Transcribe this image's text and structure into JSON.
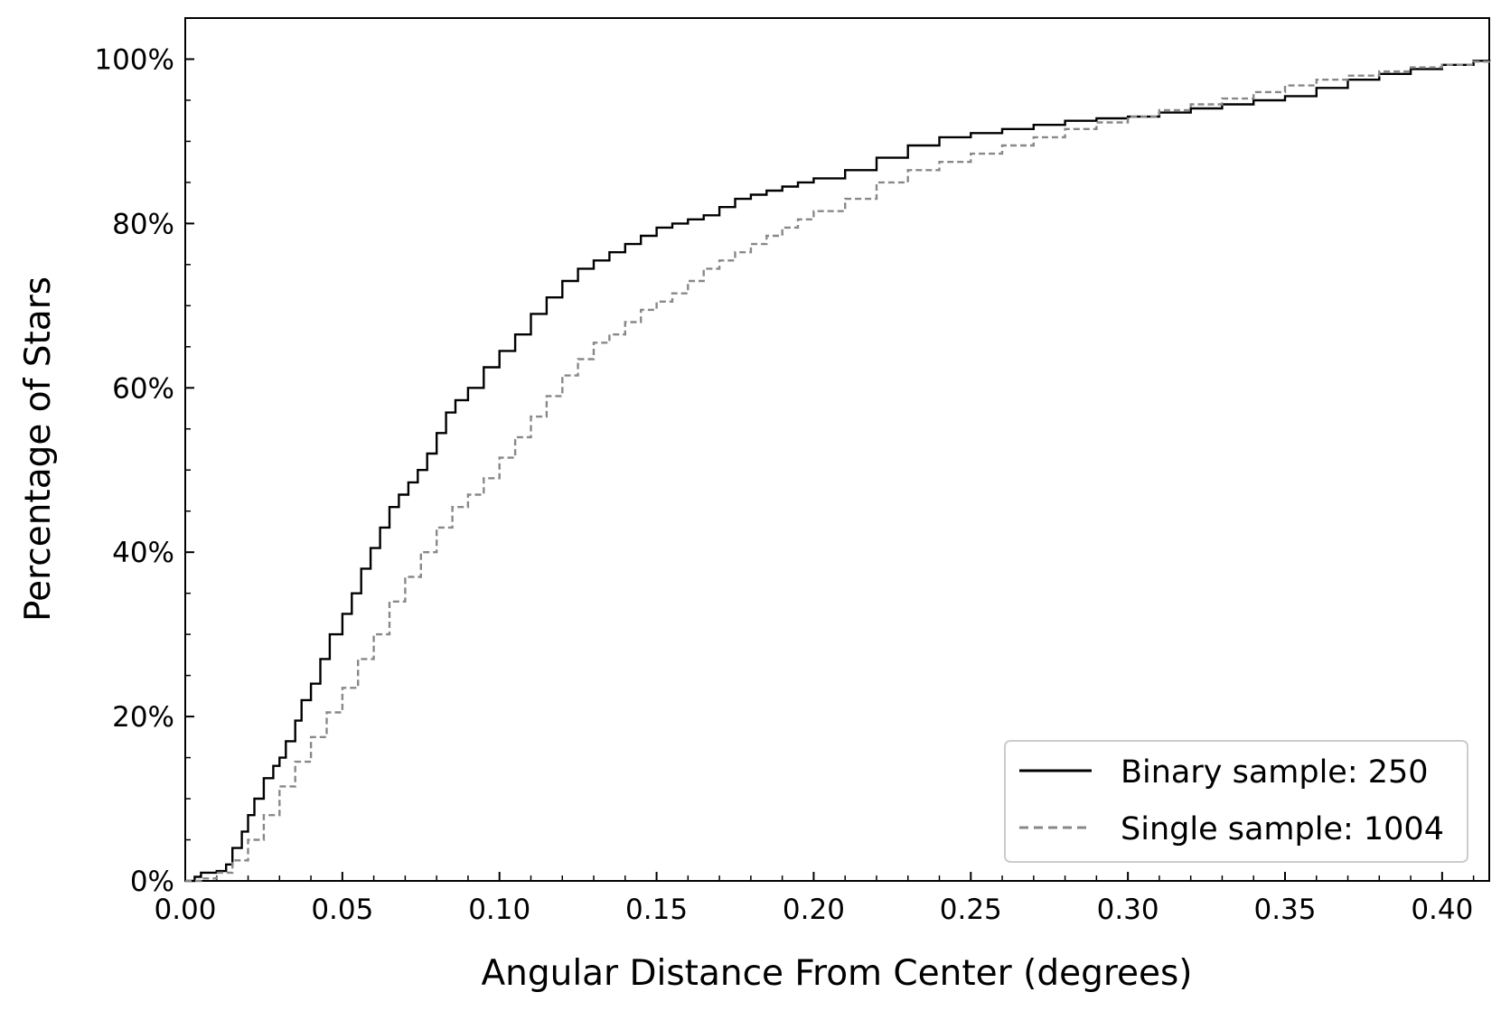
{
  "chart_data": {
    "type": "line",
    "title": "",
    "xlabel": "Angular Distance From Center (degrees)",
    "ylabel": "Percentage of Stars",
    "xlim": [
      0,
      0.415
    ],
    "ylim": [
      0,
      105
    ],
    "x_ticks": [
      {
        "value": 0.0,
        "label": "0.00"
      },
      {
        "value": 0.05,
        "label": "0.05"
      },
      {
        "value": 0.1,
        "label": "0.10"
      },
      {
        "value": 0.15,
        "label": "0.15"
      },
      {
        "value": 0.2,
        "label": "0.20"
      },
      {
        "value": 0.25,
        "label": "0.25"
      },
      {
        "value": 0.3,
        "label": "0.30"
      },
      {
        "value": 0.35,
        "label": "0.35"
      },
      {
        "value": 0.4,
        "label": "0.40"
      }
    ],
    "y_ticks": [
      {
        "value": 0,
        "label": "0%"
      },
      {
        "value": 20,
        "label": "20%"
      },
      {
        "value": 40,
        "label": "40%"
      },
      {
        "value": 60,
        "label": "60%"
      },
      {
        "value": 80,
        "label": "80%"
      },
      {
        "value": 100,
        "label": "100%"
      }
    ],
    "grid": false,
    "legend_position": "bottom-right",
    "series": [
      {
        "name": "Binary sample: 250",
        "style": "solid",
        "color": "#000000",
        "x": [
          0.0,
          0.003,
          0.005,
          0.01,
          0.013,
          0.015,
          0.018,
          0.02,
          0.022,
          0.025,
          0.028,
          0.03,
          0.032,
          0.035,
          0.037,
          0.04,
          0.043,
          0.046,
          0.05,
          0.053,
          0.056,
          0.059,
          0.062,
          0.065,
          0.068,
          0.071,
          0.074,
          0.077,
          0.08,
          0.083,
          0.086,
          0.09,
          0.095,
          0.1,
          0.105,
          0.11,
          0.115,
          0.12,
          0.125,
          0.13,
          0.135,
          0.14,
          0.145,
          0.15,
          0.155,
          0.16,
          0.165,
          0.17,
          0.175,
          0.18,
          0.185,
          0.19,
          0.195,
          0.2,
          0.21,
          0.22,
          0.23,
          0.24,
          0.25,
          0.26,
          0.27,
          0.28,
          0.29,
          0.3,
          0.31,
          0.32,
          0.33,
          0.34,
          0.35,
          0.36,
          0.37,
          0.38,
          0.39,
          0.4,
          0.41,
          0.415
        ],
        "y": [
          0.0,
          0.5,
          1.0,
          1.2,
          2.0,
          4.0,
          6.0,
          8.0,
          10.0,
          12.5,
          14.0,
          15.0,
          17.0,
          19.5,
          22.0,
          24.0,
          27.0,
          30.0,
          32.5,
          35.0,
          38.0,
          40.5,
          43.0,
          45.5,
          47.0,
          48.5,
          50.0,
          52.0,
          54.5,
          57.0,
          58.5,
          60.0,
          62.5,
          64.5,
          66.5,
          69.0,
          71.0,
          73.0,
          74.5,
          75.5,
          76.5,
          77.5,
          78.5,
          79.5,
          80.0,
          80.5,
          81.0,
          82.0,
          83.0,
          83.5,
          84.0,
          84.5,
          85.0,
          85.5,
          86.5,
          88.0,
          89.5,
          90.5,
          91.0,
          91.5,
          92.0,
          92.5,
          92.8,
          93.0,
          93.5,
          94.0,
          94.5,
          95.0,
          95.5,
          96.5,
          97.5,
          98.2,
          98.8,
          99.3,
          99.8,
          100.0
        ]
      },
      {
        "name": "Single sample: 1004",
        "style": "dashed",
        "color": "#888888",
        "x": [
          0.0,
          0.005,
          0.01,
          0.015,
          0.02,
          0.025,
          0.03,
          0.035,
          0.04,
          0.045,
          0.05,
          0.055,
          0.06,
          0.065,
          0.07,
          0.075,
          0.08,
          0.085,
          0.09,
          0.095,
          0.1,
          0.105,
          0.11,
          0.115,
          0.12,
          0.125,
          0.13,
          0.135,
          0.14,
          0.145,
          0.15,
          0.155,
          0.16,
          0.165,
          0.17,
          0.175,
          0.18,
          0.185,
          0.19,
          0.195,
          0.2,
          0.21,
          0.22,
          0.23,
          0.24,
          0.25,
          0.26,
          0.27,
          0.28,
          0.29,
          0.3,
          0.31,
          0.32,
          0.33,
          0.34,
          0.35,
          0.36,
          0.37,
          0.38,
          0.39,
          0.4,
          0.41,
          0.415
        ],
        "y": [
          0.0,
          0.3,
          1.0,
          2.5,
          5.0,
          8.0,
          11.5,
          14.5,
          17.5,
          20.5,
          23.5,
          27.0,
          30.0,
          34.0,
          37.0,
          40.0,
          43.0,
          45.5,
          47.0,
          49.0,
          51.5,
          54.0,
          56.5,
          59.0,
          61.5,
          63.5,
          65.5,
          66.5,
          68.0,
          69.5,
          70.5,
          71.5,
          73.0,
          74.5,
          75.5,
          76.5,
          77.5,
          78.5,
          79.5,
          80.5,
          81.5,
          83.0,
          85.0,
          86.5,
          87.5,
          88.5,
          89.5,
          90.5,
          91.5,
          92.3,
          93.0,
          93.8,
          94.5,
          95.2,
          96.0,
          96.8,
          97.5,
          98.0,
          98.5,
          99.0,
          99.3,
          99.7,
          100.0
        ]
      }
    ]
  },
  "legend": {
    "items": [
      {
        "label": "Binary sample: 250",
        "style": "solid",
        "color": "#000000"
      },
      {
        "label": "Single sample: 1004",
        "style": "dashed",
        "color": "#888888"
      }
    ]
  }
}
